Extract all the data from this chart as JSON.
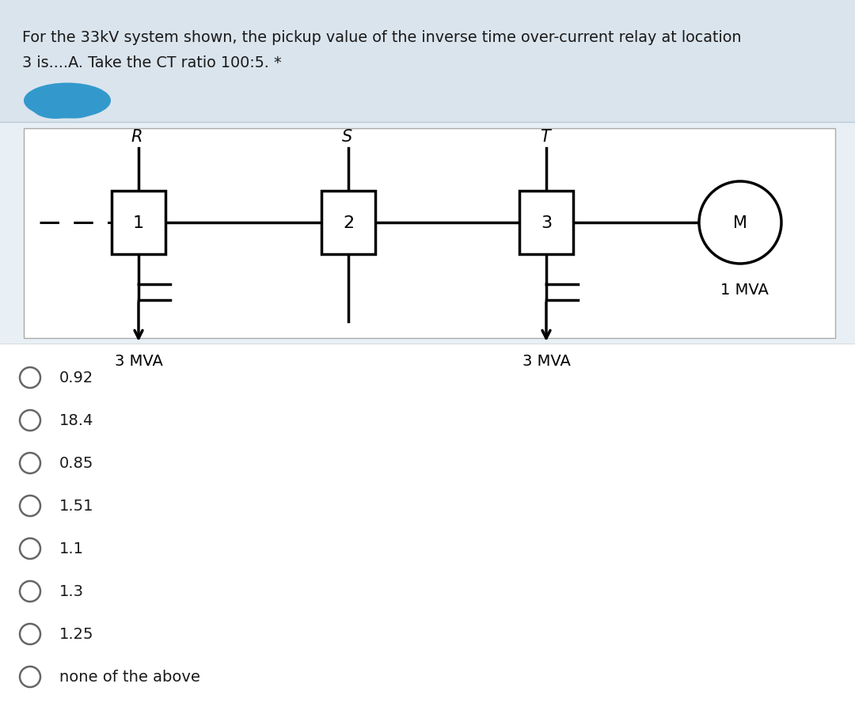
{
  "title_line1": "For the 33kV system shown, the pickup value of the inverse time over-current relay at location",
  "title_line2": "3 is....A. Take the CT ratio 100:5. *",
  "bg_top_color": "#dae4ed",
  "bg_diagram_color": "#e8f0f5",
  "bg_bottom_color": "#ffffff",
  "options": [
    "0.92",
    "18.4",
    "0.85",
    "1.51",
    "1.1",
    "1.3",
    "1.25",
    "none of the above"
  ],
  "relay_labels": [
    "1",
    "2",
    "3"
  ],
  "bus_labels": [
    "R",
    "S",
    "T"
  ],
  "motor_label": "M",
  "load1_label": "3 MVA",
  "load2_label": "3 MVA",
  "motor_mva_label": "1 MVA",
  "blob_color": "#3399cc"
}
